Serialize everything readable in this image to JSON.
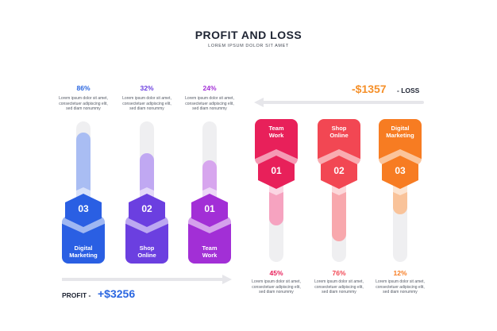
{
  "header": {
    "title": "PROFIT AND LOSS",
    "subtitle": "LOREM IPSUM DOLOR SIT AMET"
  },
  "description_text": "Lorem ipsum dolor sit amet, consectetuer adipiscing elit, sed diam nonummy",
  "profit": {
    "label": "PROFIT -",
    "amount": "+$3256",
    "color": "#2a66e0",
    "items": [
      {
        "percent": "86%",
        "number": "03",
        "label_line1": "Digital",
        "label_line2": "Marketing",
        "color": "#2a5fe3",
        "light": "#a9bdf3",
        "level": 0.86
      },
      {
        "percent": "32%",
        "number": "02",
        "label_line1": "Shop",
        "label_line2": "Online",
        "color": "#6b3fe0",
        "light": "#c0a8f2",
        "level": 0.32
      },
      {
        "percent": "24%",
        "number": "01",
        "label_line1": "Team",
        "label_line2": "Work",
        "color": "#a22fd6",
        "light": "#d7a6ee",
        "level": 0.24
      }
    ]
  },
  "loss": {
    "label": "- LOSS",
    "amount": "-$1357",
    "color": "#f5902a",
    "items": [
      {
        "percent": "45%",
        "number": "01",
        "label_line1": "Team",
        "label_line2": "Work",
        "color": "#e8205a",
        "light": "#f6a3c0",
        "level": 0.45
      },
      {
        "percent": "76%",
        "number": "02",
        "label_line1": "Shop",
        "label_line2": "Online",
        "color": "#f24753",
        "light": "#f8a8ad",
        "level": 0.76
      },
      {
        "percent": "12%",
        "number": "03",
        "label_line1": "Digital",
        "label_line2": "Marketing",
        "color": "#f77c22",
        "light": "#f9c39a",
        "level": 0.12
      }
    ]
  }
}
